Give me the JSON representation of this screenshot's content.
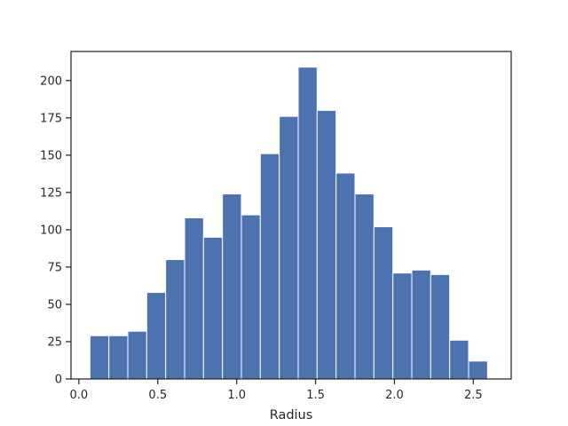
{
  "chart_data": {
    "type": "bar",
    "title": "",
    "xlabel": "Radius",
    "ylabel": "",
    "xlim": [
      -0.05,
      2.74
    ],
    "ylim": [
      0,
      219.5
    ],
    "bar_color": "#4c72b0",
    "edge_color": "#ffffff",
    "grid": false,
    "bins": [
      {
        "x0": 0.07,
        "x1": 0.19,
        "value": 29
      },
      {
        "x0": 0.19,
        "x1": 0.31,
        "value": 29
      },
      {
        "x0": 0.31,
        "x1": 0.43,
        "value": 32
      },
      {
        "x0": 0.43,
        "x1": 0.55,
        "value": 58
      },
      {
        "x0": 0.55,
        "x1": 0.67,
        "value": 80
      },
      {
        "x0": 0.67,
        "x1": 0.79,
        "value": 108
      },
      {
        "x0": 0.79,
        "x1": 0.91,
        "value": 95
      },
      {
        "x0": 0.91,
        "x1": 1.03,
        "value": 124
      },
      {
        "x0": 1.03,
        "x1": 1.15,
        "value": 110
      },
      {
        "x0": 1.15,
        "x1": 1.27,
        "value": 151
      },
      {
        "x0": 1.27,
        "x1": 1.39,
        "value": 176
      },
      {
        "x0": 1.39,
        "x1": 1.51,
        "value": 209
      },
      {
        "x0": 1.51,
        "x1": 1.63,
        "value": 180
      },
      {
        "x0": 1.63,
        "x1": 1.75,
        "value": 138
      },
      {
        "x0": 1.75,
        "x1": 1.87,
        "value": 124
      },
      {
        "x0": 1.87,
        "x1": 1.99,
        "value": 102
      },
      {
        "x0": 1.99,
        "x1": 2.11,
        "value": 71
      },
      {
        "x0": 2.11,
        "x1": 2.23,
        "value": 73
      },
      {
        "x0": 2.23,
        "x1": 2.35,
        "value": 70
      },
      {
        "x0": 2.35,
        "x1": 2.47,
        "value": 26
      },
      {
        "x0": 2.47,
        "x1": 2.59,
        "value": 12
      }
    ],
    "xticks": [
      {
        "value": 0.0,
        "label": "0.0"
      },
      {
        "value": 0.5,
        "label": "0.5"
      },
      {
        "value": 1.0,
        "label": "1.0"
      },
      {
        "value": 1.5,
        "label": "1.5"
      },
      {
        "value": 2.0,
        "label": "2.0"
      },
      {
        "value": 2.5,
        "label": "2.5"
      }
    ],
    "yticks": [
      {
        "value": 0,
        "label": "0"
      },
      {
        "value": 25,
        "label": "25"
      },
      {
        "value": 50,
        "label": "50"
      },
      {
        "value": 75,
        "label": "75"
      },
      {
        "value": 100,
        "label": "100"
      },
      {
        "value": 125,
        "label": "125"
      },
      {
        "value": 150,
        "label": "150"
      },
      {
        "value": 175,
        "label": "175"
      },
      {
        "value": 200,
        "label": "200"
      }
    ]
  }
}
